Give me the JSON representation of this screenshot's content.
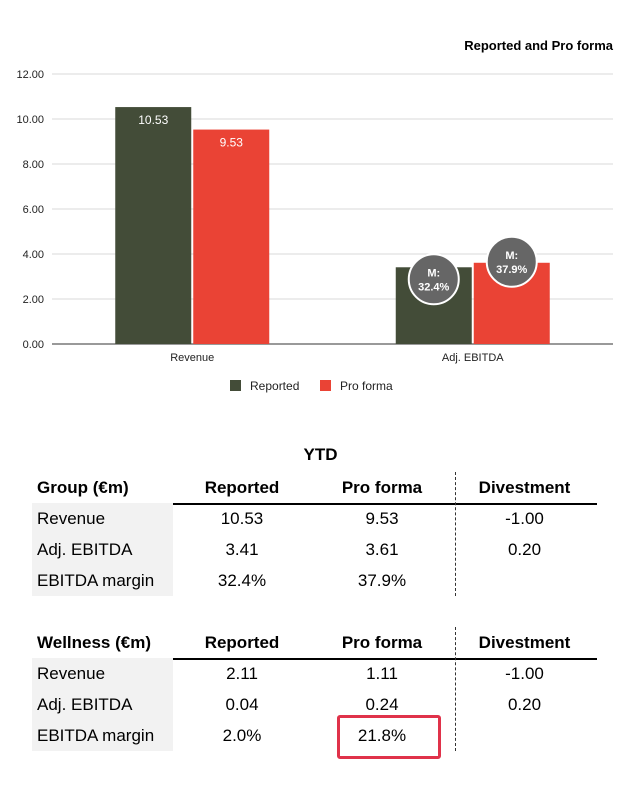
{
  "chart_data": {
    "type": "bar",
    "title": "Reported and Pro forma",
    "categories": [
      "Revenue",
      "Adj. EBITDA"
    ],
    "series": [
      {
        "name": "Reported",
        "values": [
          10.53,
          3.41
        ],
        "color": "#434c38",
        "labels": [
          "10.53",
          ""
        ]
      },
      {
        "name": "Pro forma",
        "values": [
          9.53,
          3.61
        ],
        "color": "#ea4335",
        "labels": [
          "9.53",
          ""
        ]
      }
    ],
    "ylim": [
      0,
      12
    ],
    "yticks": [
      "0.00",
      "2.00",
      "4.00",
      "6.00",
      "8.00",
      "10.00",
      "12.00"
    ],
    "grid": true,
    "legend": "bottom",
    "annotations": [
      {
        "category": "Adj. EBITDA",
        "series": "Reported",
        "line1": "M:",
        "line2": "32.4%"
      },
      {
        "category": "Adj. EBITDA",
        "series": "Pro forma",
        "line1": "M:",
        "line2": "37.9%"
      }
    ]
  },
  "ytd_label": "YTD",
  "tables": [
    {
      "headers": [
        "Group (€m)",
        "Reported",
        "Pro forma",
        "Divestment"
      ],
      "rows": [
        [
          "Revenue",
          "10.53",
          "9.53",
          "-1.00"
        ],
        [
          "Adj. EBITDA",
          "3.41",
          "3.61",
          "0.20"
        ],
        [
          "EBITDA margin",
          "32.4%",
          "37.9%",
          ""
        ]
      ]
    },
    {
      "headers": [
        "Wellness (€m)",
        "Reported",
        "Pro forma",
        "Divestment"
      ],
      "rows": [
        [
          "Revenue",
          "2.11",
          "1.11",
          "-1.00"
        ],
        [
          "Adj. EBITDA",
          "0.04",
          "0.24",
          "0.20"
        ],
        [
          "EBITDA margin",
          "2.0%",
          "21.8%",
          ""
        ]
      ],
      "highlight_cell": {
        "row": 2,
        "col": 2,
        "color": "#e0324a"
      }
    }
  ]
}
